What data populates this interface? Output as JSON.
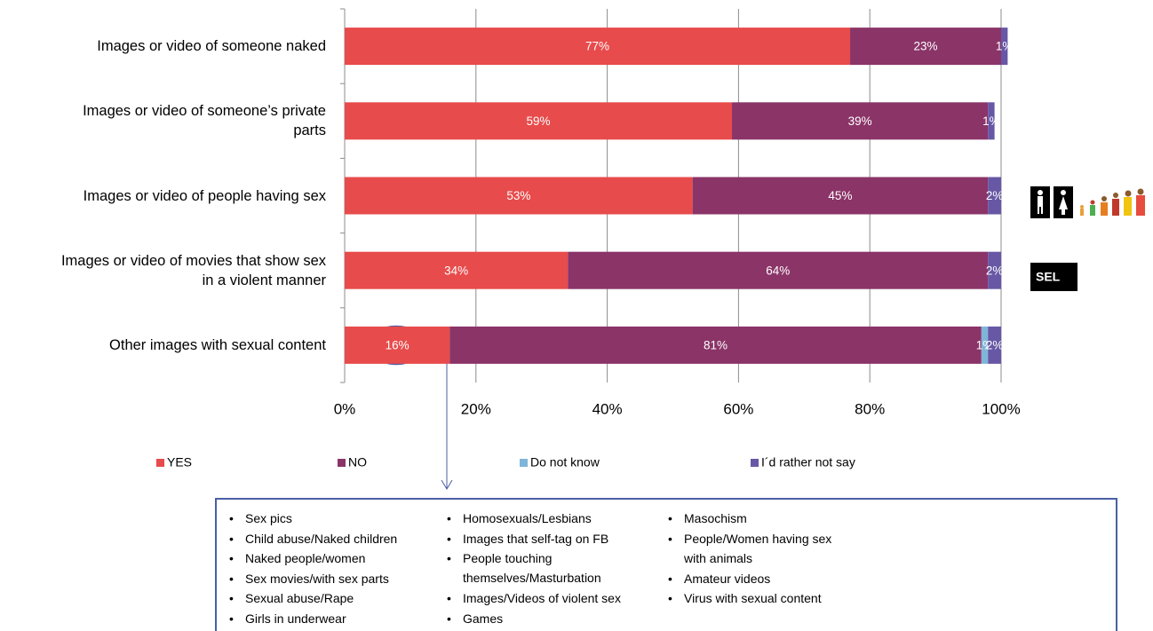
{
  "chart_data": {
    "type": "stacked-barh",
    "categories": [
      "Images or video of someone naked",
      "Images or video of someone’s private\nparts",
      "Images or video of people having sex",
      "Images or video of movies that show sex\nin a violent manner",
      "Other images with sexual content"
    ],
    "series": [
      {
        "name": "YES",
        "color": "#e84b4b",
        "values": [
          77,
          59,
          53,
          34,
          16
        ],
        "value_labels": [
          "77%",
          "59%",
          "53%",
          "34%",
          "16%"
        ]
      },
      {
        "name": "NO",
        "color": "#8b3468",
        "values": [
          23,
          39,
          45,
          64,
          81
        ],
        "value_labels": [
          "23%",
          "39%",
          "45%",
          "64%",
          "81%"
        ]
      },
      {
        "name": "Do not know",
        "color": "#7fb5d8",
        "values": [
          null,
          null,
          null,
          null,
          1
        ],
        "value_labels": [
          null,
          null,
          null,
          null,
          "1%"
        ]
      },
      {
        "name": "I´d rather not say",
        "color": "#6757a5",
        "values": [
          1,
          1,
          2,
          2,
          2
        ],
        "value_labels": [
          "1%",
          "1%",
          "2%",
          "2%",
          "2%"
        ]
      }
    ],
    "xlim": [
      0,
      100
    ],
    "xticks": [
      {
        "value": 0,
        "label": "0%"
      },
      {
        "value": 20,
        "label": "20%"
      },
      {
        "value": 40,
        "label": "40%"
      },
      {
        "value": 60,
        "label": "60%"
      },
      {
        "value": 80,
        "label": "80%"
      },
      {
        "value": 100,
        "label": "100%"
      }
    ],
    "grid": true,
    "legend": "bottom"
  },
  "badge": "SEL",
  "notes": {
    "columns": [
      [
        "Sex pics",
        "Child abuse/Naked children",
        "Naked people/women",
        "Sex movies/with sex parts",
        "Sexual abuse/Rape",
        "Girls in underwear"
      ],
      [
        "Homosexuals/Lesbians",
        "Images that self-tag on FB",
        "People touching\nthemselves/Masturbation",
        "Images/Videos of violent sex",
        "Games"
      ],
      [
        "Masochism",
        "People/Women having sex\nwith animals",
        "Amateur videos",
        "Virus with sexual content"
      ]
    ]
  }
}
